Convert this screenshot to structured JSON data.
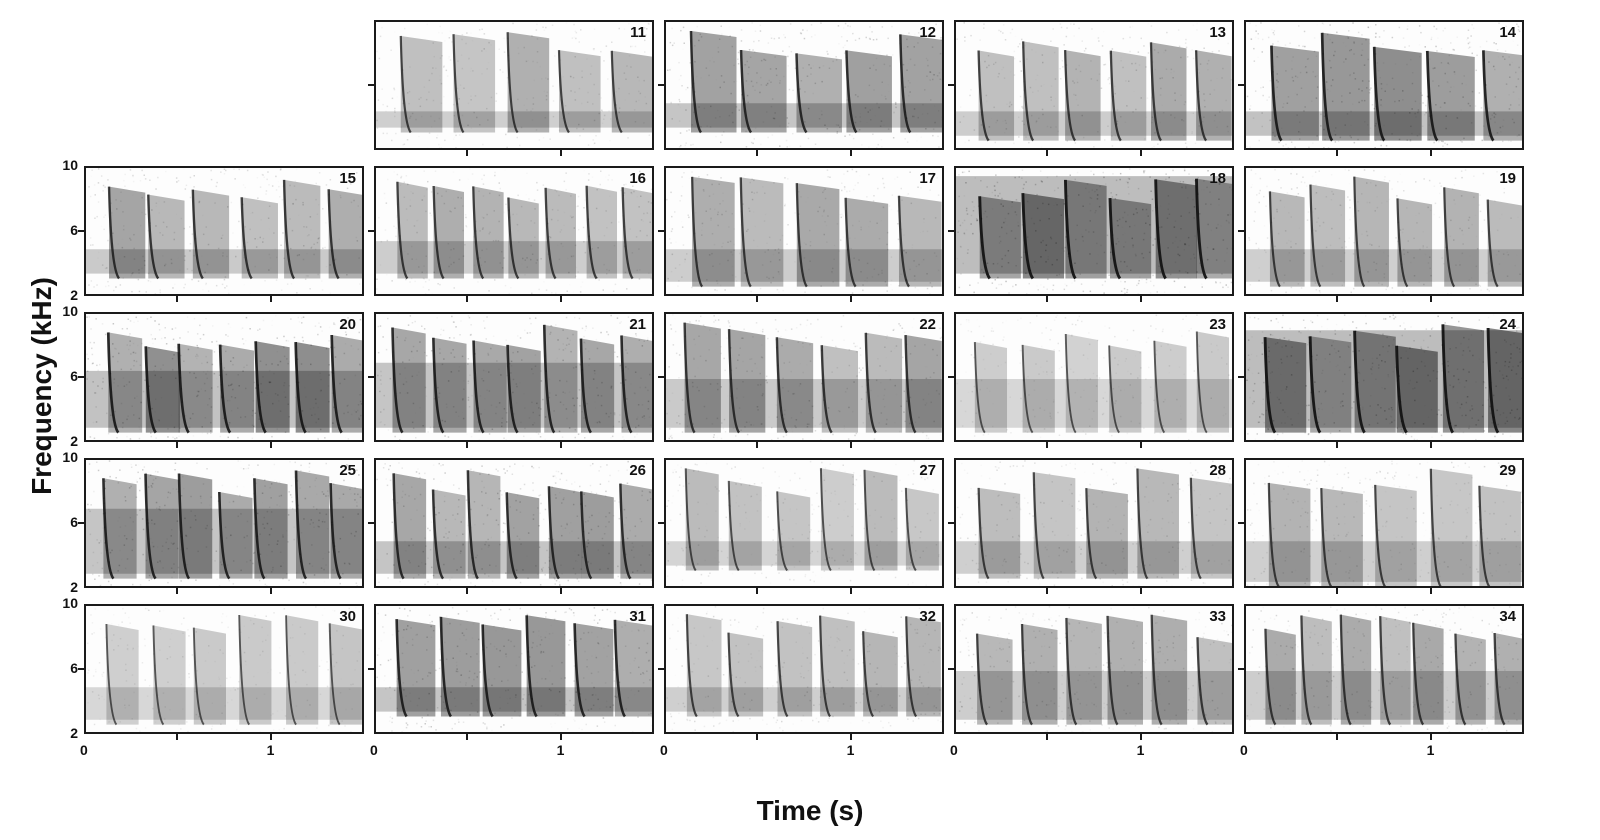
{
  "axes": {
    "ylabel": "Frequency (kHz)",
    "xlabel": "Time (s)",
    "y_ticks": [
      "10",
      "6",
      "2"
    ],
    "x_ticks": [
      "0",
      "1"
    ]
  },
  "panels": [
    {
      "id": "11",
      "density": 0.55,
      "calls": 5,
      "band": [
        3.5,
        4.5
      ]
    },
    {
      "id": "12",
      "density": 0.75,
      "calls": 5,
      "band": [
        3.5,
        5.0
      ]
    },
    {
      "id": "13",
      "density": 0.6,
      "calls": 6,
      "band": [
        3.0,
        4.5
      ]
    },
    {
      "id": "14",
      "density": 0.85,
      "calls": 5,
      "band": [
        3.0,
        4.5
      ]
    },
    {
      "id": "15",
      "density": 0.65,
      "calls": 6,
      "band": [
        3.5,
        5.0
      ]
    },
    {
      "id": "16",
      "density": 0.6,
      "calls": 7,
      "band": [
        3.5,
        5.5
      ]
    },
    {
      "id": "17",
      "density": 0.6,
      "calls": 5,
      "band": [
        3.0,
        5.0
      ]
    },
    {
      "id": "18",
      "density": 0.95,
      "calls": 6,
      "band": [
        3.5,
        9.5
      ]
    },
    {
      "id": "19",
      "density": 0.55,
      "calls": 6,
      "band": [
        3.0,
        5.0
      ]
    },
    {
      "id": "20",
      "density": 0.85,
      "calls": 7,
      "band": [
        3.0,
        6.5
      ]
    },
    {
      "id": "21",
      "density": 0.8,
      "calls": 7,
      "band": [
        3.0,
        7.0
      ]
    },
    {
      "id": "22",
      "density": 0.65,
      "calls": 6,
      "band": [
        3.0,
        6.0
      ]
    },
    {
      "id": "23",
      "density": 0.4,
      "calls": 6,
      "band": [
        3.0,
        6.0
      ]
    },
    {
      "id": "24",
      "density": 0.95,
      "calls": 6,
      "band": [
        3.0,
        9.0
      ]
    },
    {
      "id": "25",
      "density": 0.8,
      "calls": 7,
      "band": [
        3.0,
        7.0
      ]
    },
    {
      "id": "26",
      "density": 0.75,
      "calls": 7,
      "band": [
        3.0,
        5.0
      ]
    },
    {
      "id": "27",
      "density": 0.45,
      "calls": 6,
      "band": [
        3.5,
        5.0
      ]
    },
    {
      "id": "28",
      "density": 0.55,
      "calls": 5,
      "band": [
        3.0,
        5.0
      ]
    },
    {
      "id": "29",
      "density": 0.55,
      "calls": 5,
      "band": [
        2.5,
        5.0
      ]
    },
    {
      "id": "30",
      "density": 0.4,
      "calls": 6,
      "band": [
        3.0,
        5.0
      ]
    },
    {
      "id": "31",
      "density": 0.8,
      "calls": 6,
      "band": [
        3.5,
        5.0
      ]
    },
    {
      "id": "32",
      "density": 0.55,
      "calls": 6,
      "band": [
        3.5,
        5.0
      ]
    },
    {
      "id": "33",
      "density": 0.6,
      "calls": 6,
      "band": [
        3.0,
        6.0
      ]
    },
    {
      "id": "34",
      "density": 0.6,
      "calls": 7,
      "band": [
        3.0,
        6.0
      ]
    }
  ]
}
